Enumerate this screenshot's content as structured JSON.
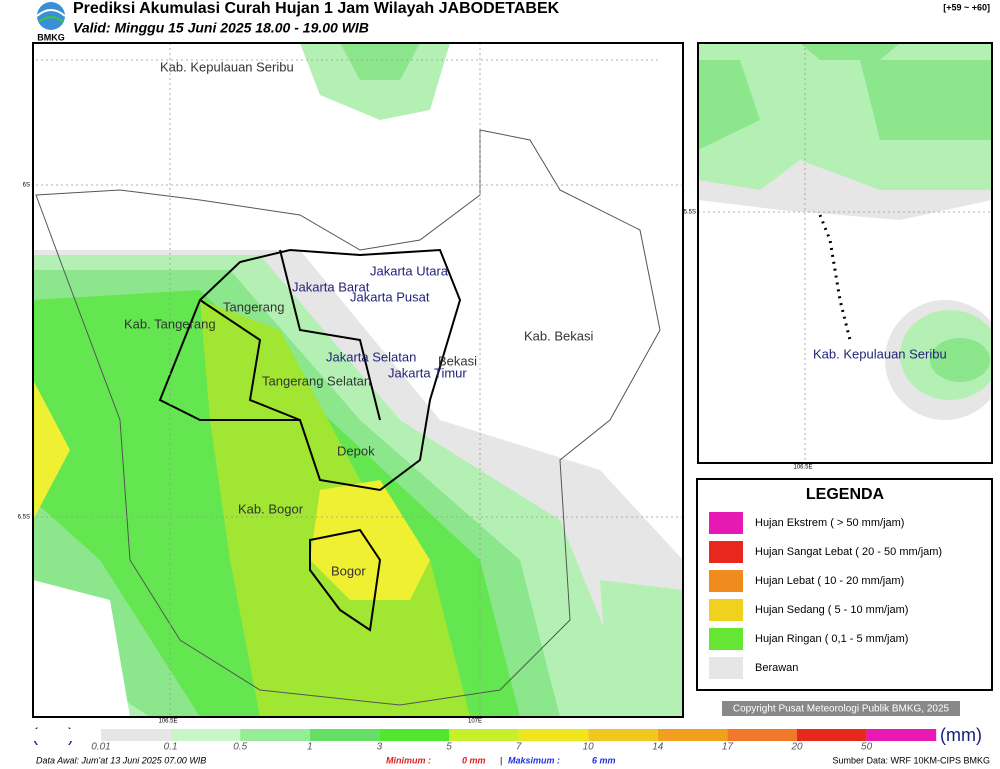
{
  "header": {
    "title": "Prediksi Akumulasi Curah Hujan 1 Jam Wilayah JABODETABEK",
    "subtitle": "Valid: Minggu 15 Juni 2025 18.00 - 19.00 WIB",
    "logo": "BMKG",
    "range": "[+59 ~ +60]"
  },
  "map": {
    "labels": [
      "Kab. Kepulauan Seribu",
      "Jakarta Utara",
      "Jakarta Barat",
      "Jakarta Pusat",
      "Tangerang",
      "Kab. Tangerang",
      "Jakarta Selatan",
      "Jakarta Timur",
      "Bekasi",
      "Kab. Bekasi",
      "Tangerang Selatan",
      "Depok",
      "Kab. Bogor",
      "Bogor"
    ],
    "lat_ticks": [
      "6S",
      "6.5S"
    ],
    "lon_ticks": [
      "106.5E",
      "107E"
    ]
  },
  "inset": {
    "label": "Kab. Kepulauan Seribu",
    "lat_tick": "5.5S",
    "lon_tick": "106.5E"
  },
  "legend": {
    "title": "LEGENDA",
    "items": [
      "Hujan Ekstrem ( > 50 mm/jam)",
      "Hujan Sangat Lebat ( 20 - 50 mm/jam)",
      "Hujan Lebat ( 10 - 20 mm/jam)",
      "Hujan Sedang ( 5 - 10 mm/jam)",
      "Hujan Ringan ( 0,1 - 5 mm/jam)",
      "Berawan"
    ]
  },
  "copyright": "Copyright Pusat Meteorologi Publik BMKG, 2025",
  "colorbar": {
    "unit": "(mm)",
    "labels": [
      "0.01",
      "0.1",
      "0.5",
      "1",
      "3",
      "5",
      "7",
      "10",
      "14",
      "17",
      "20",
      "50"
    ]
  },
  "footer": {
    "initial": "Data Awal: Jum'at 13 Juni 2025 07.00 WIB",
    "min_label": "Minimum :",
    "min_value": "0 mm",
    "separator": "|",
    "max_label": "Maksimum :",
    "max_value": "6 mm",
    "source": "Sumber Data: WRF 10KM-CIPS BMKG"
  }
}
